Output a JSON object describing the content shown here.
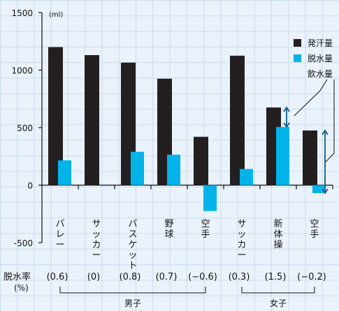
{
  "chart_data": {
    "type": "bar",
    "unit": "(ml)",
    "ylim": [
      -500,
      1500
    ],
    "yticks": [
      "1500",
      "1000",
      "500",
      "0",
      "-500"
    ],
    "ytick_values": [
      1500,
      1000,
      500,
      0,
      -500
    ],
    "categories": [
      [
        "バ",
        "レ",
        "ー"
      ],
      [
        "サ",
        "ッ",
        "カ",
        "ー"
      ],
      [
        "バ",
        "ス",
        "ケ",
        "ッ",
        "ト"
      ],
      [
        "野",
        "球"
      ],
      [
        "空",
        "手"
      ],
      [
        "サ",
        "ッ",
        "カ",
        "ー"
      ],
      [
        "新",
        "体",
        "操"
      ],
      [
        "空",
        "手"
      ]
    ],
    "series": [
      {
        "name": "発汗量",
        "color": "#231f20",
        "values": [
          1200,
          1130,
          1065,
          925,
          420,
          1125,
          675,
          475
        ]
      },
      {
        "name": "脱水量",
        "color": "#00b3e8",
        "values": [
          215,
          0,
          290,
          265,
          -225,
          140,
          505,
          -70
        ]
      }
    ],
    "annotation": {
      "label": "飲水量",
      "color": "#0c5e8a"
    },
    "dehydration_rate": {
      "label_line1": "脱水率",
      "label_line2": "(%)",
      "values": [
        "(0.6)",
        "(0)",
        "(0.8)",
        "(0.7)",
        "(−0.6)",
        "(0.3)",
        "(1.5)",
        "(−0.2)"
      ]
    },
    "groups": [
      {
        "label": "男子",
        "start": 0,
        "end": 4
      },
      {
        "label": "女子",
        "start": 5,
        "end": 7
      }
    ],
    "grid": true,
    "legend_position": "top-right"
  }
}
